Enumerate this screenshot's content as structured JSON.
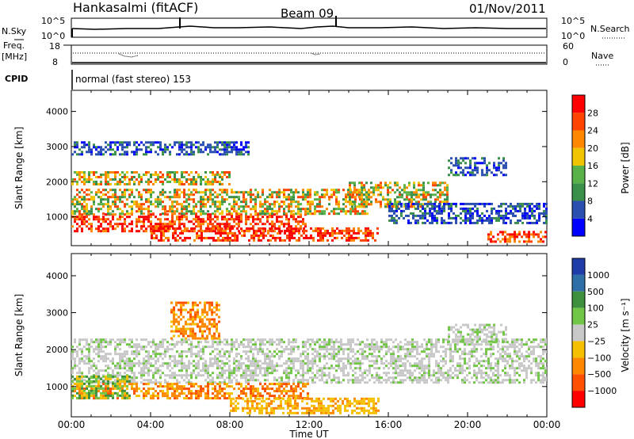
{
  "header": {
    "station": "Hankasalmi (fitACF)",
    "beam": "Beam 09",
    "date": "01/Nov/2011"
  },
  "top_panels": {
    "nsky_label": "N.Sky",
    "nsearch_label": "N.Search",
    "count_ticks_left": [
      "10^5",
      "10^0"
    ],
    "count_ticks_right": [
      "10^5",
      "10^0"
    ],
    "freq_label_1": "Freq.",
    "freq_label_2": "[MHz]",
    "freq_ticks": [
      "18",
      "8"
    ],
    "nave_label": "Nave",
    "nave_ticks": [
      "60",
      "0"
    ],
    "cpid_label": "CPID",
    "cpid_text": "normal (fast stereo) 153"
  },
  "colors": {
    "power_scale": [
      "#0000ff",
      "#2a4fb0",
      "#3a8f4a",
      "#58b247",
      "#f0c400",
      "#ff8800",
      "#ff4400",
      "#ff0000"
    ],
    "velocity_scale": [
      "#1f3da8",
      "#2f6fa8",
      "#3e8f3e",
      "#72c646",
      "#c8c8c8",
      "#f5c000",
      "#ff8800",
      "#ff5000",
      "#ff0000"
    ]
  },
  "chart_data": [
    {
      "type": "heatmap",
      "quantity": "power",
      "ylabel": "Slant Range [km]",
      "y_ticks": [
        1000,
        2000,
        3000,
        4000
      ],
      "ylim": [
        180,
        4600
      ],
      "xlim_hours": [
        0,
        24
      ],
      "colorbar_label": "Power [dB]",
      "colorbar_ticks": [
        "4",
        "8",
        "12",
        "16",
        "20",
        "24",
        "28"
      ],
      "regions": [
        {
          "t0": 0,
          "t1": 11.8,
          "r0": 600,
          "r1": 1100,
          "level": "high"
        },
        {
          "t0": 4,
          "t1": 15.5,
          "r0": 350,
          "r1": 700,
          "level": "high"
        },
        {
          "t0": 0,
          "t1": 15,
          "r0": 1100,
          "r1": 1800,
          "level": "medium"
        },
        {
          "t0": 0,
          "t1": 8,
          "r0": 1900,
          "r1": 2300,
          "level": "medium"
        },
        {
          "t0": 0,
          "t1": 9,
          "r0": 2800,
          "r1": 3150,
          "level": "low"
        },
        {
          "t0": 14,
          "t1": 19,
          "r0": 1300,
          "r1": 2000,
          "level": "medium"
        },
        {
          "t0": 16,
          "t1": 24,
          "r0": 800,
          "r1": 1400,
          "level": "low"
        },
        {
          "t0": 19,
          "t1": 22,
          "r0": 2200,
          "r1": 2700,
          "level": "low"
        },
        {
          "t0": 21,
          "t1": 24,
          "r0": 300,
          "r1": 600,
          "level": "high"
        }
      ]
    },
    {
      "type": "heatmap",
      "quantity": "velocity",
      "xlabel": "Time UT",
      "ylabel": "Slant Range [km]",
      "y_ticks": [
        1000,
        2000,
        3000,
        4000
      ],
      "ylim": [
        180,
        4600
      ],
      "xlim_hours": [
        0,
        24
      ],
      "x_ticks": [
        "00:00",
        "04:00",
        "08:00",
        "12:00",
        "16:00",
        "20:00",
        "00:00"
      ],
      "colorbar_label": "Velocity [m s⁻¹]",
      "colorbar_ticks": [
        "1000",
        "500",
        "100",
        "25",
        "−25",
        "−100",
        "−500",
        "−1000"
      ],
      "regions": [
        {
          "t0": 0,
          "t1": 24,
          "r0": 1100,
          "r1": 2300,
          "level": "ground"
        },
        {
          "t0": 0,
          "t1": 12,
          "r0": 700,
          "r1": 1100,
          "level": "away"
        },
        {
          "t0": 8,
          "t1": 15.5,
          "r0": 300,
          "r1": 700,
          "level": "toward"
        },
        {
          "t0": 5,
          "t1": 7.5,
          "r0": 2300,
          "r1": 3300,
          "level": "away"
        },
        {
          "t0": 0,
          "t1": 3,
          "r0": 700,
          "r1": 1300,
          "level": "slow-neg"
        },
        {
          "t0": 19,
          "t1": 22,
          "r0": 2200,
          "r1": 2700,
          "level": "ground"
        }
      ]
    }
  ]
}
